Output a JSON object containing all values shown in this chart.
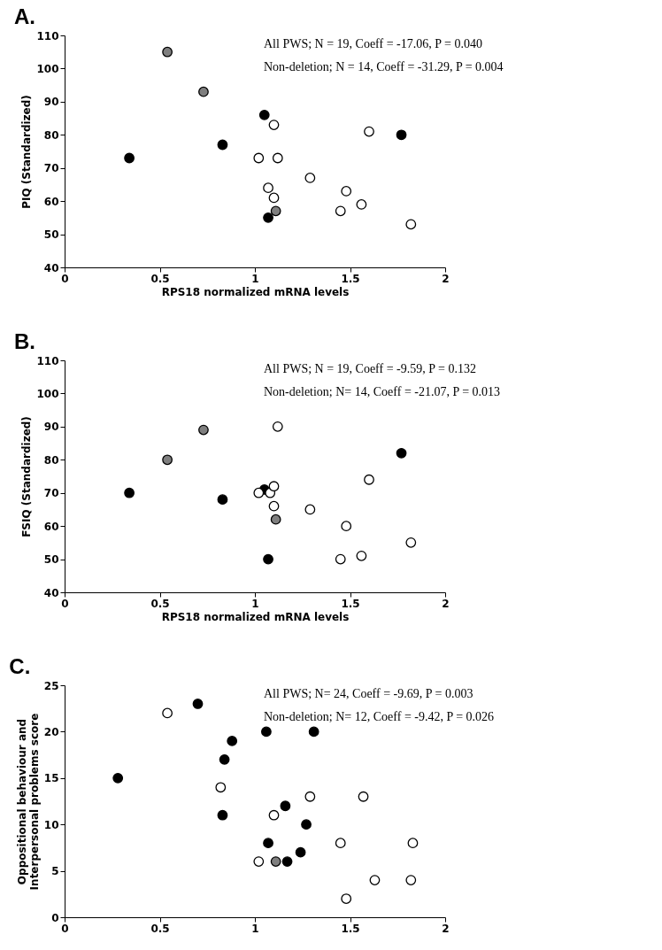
{
  "chart_data": [
    {
      "type": "scatter",
      "title": "A.",
      "xlabel": "RPS18 normalized mRNA levels",
      "ylabel": "PIQ (Standardized)",
      "annotations": [
        "All PWS; N = 19, Coeff = -17.06, P =  0.040",
        "Non-deletion; N = 14, Coeff = -31.29, P =  0.004"
      ],
      "xlim": [
        0,
        2
      ],
      "xticks": [
        0,
        0.5,
        1,
        1.5,
        2
      ],
      "ylim": [
        40,
        110
      ],
      "yticks": [
        40,
        50,
        60,
        70,
        80,
        90,
        100,
        110
      ],
      "marker": "circle",
      "series": [
        {
          "color": "#7f7f7f",
          "x": [
            0.54,
            0.73,
            1.11
          ],
          "values": [
            105,
            93,
            57
          ]
        },
        {
          "color": "#000000",
          "x": [
            0.34,
            0.83,
            1.05,
            1.07,
            1.77
          ],
          "values": [
            73,
            77,
            86,
            55,
            80
          ]
        },
        {
          "color": "#ffffff",
          "x": [
            1.1,
            1.02,
            1.12,
            1.07,
            1.1,
            1.29,
            1.48,
            1.45,
            1.56,
            1.6,
            1.82
          ],
          "values": [
            83,
            73,
            73,
            64,
            61,
            67,
            63,
            57,
            59,
            81,
            53
          ]
        }
      ]
    },
    {
      "type": "scatter",
      "title": "B.",
      "xlabel": "RPS18 normalized mRNA levels",
      "ylabel": "FSIQ (Standardized)",
      "annotations": [
        "All PWS; N = 19, Coeff = -9.59, P =  0.132",
        "Non-deletion; N= 14, Coeff = -21.07, P =  0.013"
      ],
      "xlim": [
        0,
        2
      ],
      "xticks": [
        0,
        0.5,
        1,
        1.5,
        2
      ],
      "ylim": [
        40,
        110
      ],
      "yticks": [
        40,
        50,
        60,
        70,
        80,
        90,
        100,
        110
      ],
      "marker": "circle",
      "series": [
        {
          "color": "#7f7f7f",
          "x": [
            0.54,
            0.73,
            1.11
          ],
          "values": [
            80,
            89,
            62
          ]
        },
        {
          "color": "#000000",
          "x": [
            0.34,
            0.83,
            1.05,
            1.07,
            1.77
          ],
          "values": [
            70,
            68,
            71,
            50,
            82
          ]
        },
        {
          "color": "#ffffff",
          "x": [
            1.12,
            1.02,
            1.08,
            1.1,
            1.1,
            1.29,
            1.48,
            1.45,
            1.56,
            1.6,
            1.82
          ],
          "values": [
            90,
            70,
            70,
            72,
            66,
            65,
            60,
            50,
            51,
            74,
            55
          ]
        }
      ]
    },
    {
      "type": "scatter",
      "title": "C.",
      "ylabel": "Oppositional behaviour and\nInterpersonal problems  score",
      "annotations": [
        "All PWS; N= 24, Coeff = -9.69, P =  0.003",
        "Non-deletion; N= 12, Coeff = -9.42, P =  0.026"
      ],
      "xlim": [
        0,
        2
      ],
      "xticks": [
        0,
        0.5,
        1,
        1.5,
        2
      ],
      "ylim": [
        0,
        25
      ],
      "yticks": [
        0,
        5,
        10,
        15,
        20,
        25
      ],
      "marker": "circle",
      "series": [
        {
          "color": "#000000",
          "x": [
            0.28,
            0.7,
            0.88,
            0.84,
            0.83,
            1.06,
            1.31,
            1.16,
            1.27,
            1.07,
            1.24,
            1.17
          ],
          "values": [
            15,
            23,
            19,
            17,
            11,
            20,
            20,
            12,
            10,
            8,
            7,
            6
          ]
        },
        {
          "color": "#ffffff",
          "x": [
            0.54,
            0.82,
            1.1,
            1.29,
            1.57,
            1.45,
            1.83,
            1.02,
            1.63,
            1.82,
            1.48
          ],
          "values": [
            22,
            14,
            11,
            13,
            13,
            8,
            8,
            6,
            4,
            4,
            2
          ]
        },
        {
          "color": "#7f7f7f",
          "x": [
            1.11
          ],
          "values": [
            6
          ]
        }
      ]
    }
  ]
}
